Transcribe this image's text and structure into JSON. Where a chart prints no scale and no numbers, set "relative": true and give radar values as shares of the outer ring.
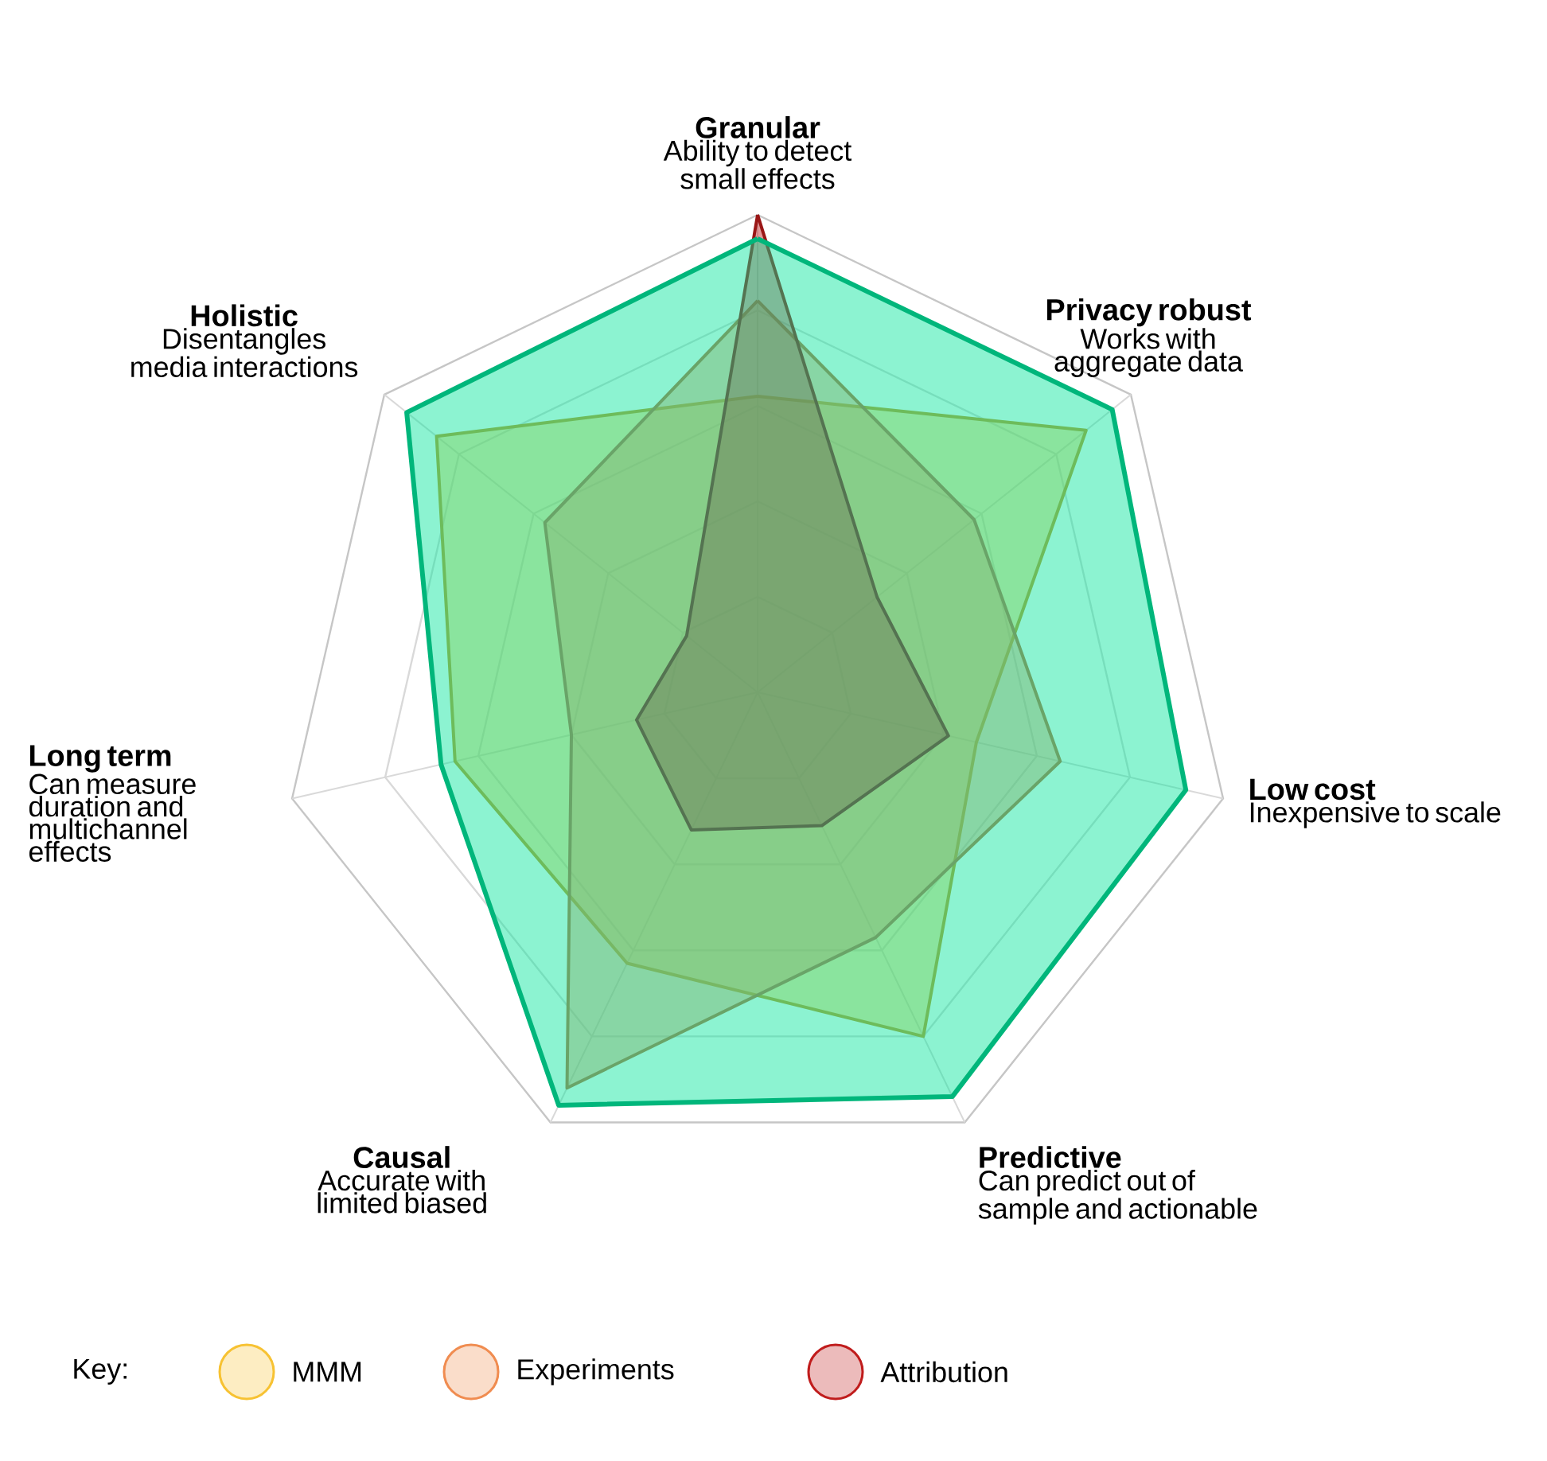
{
  "chart_data": {
    "type": "radar",
    "relative": true,
    "grid": true,
    "legend": "bottom",
    "legend_title": "Key:",
    "categories": [
      "Granular",
      "Privacy robust",
      "Low cost",
      "Predictive",
      "Causal",
      "Long term",
      "Holistic"
    ],
    "annotations": [
      "Ability to detect small effects",
      "Works with aggregate data",
      "Inexpensive to scale",
      "Can predict out of sample and actionable",
      "Accurate with limited biased",
      "Can measure duration and multichannel effects",
      "Disentangles media interactions"
    ],
    "series": [
      {
        "name": "MMM",
        "color": "#f7c232",
        "values": [
          0.62,
          0.88,
          0.47,
          0.8,
          0.63,
          0.65,
          0.86
        ]
      },
      {
        "name": "Experiments",
        "color": "#f08c50",
        "values": [
          0.82,
          0.58,
          0.65,
          0.57,
          0.92,
          0.4,
          0.57
        ]
      },
      {
        "name": "Attribution",
        "color": "#c01c1c",
        "values": [
          1.0,
          0.32,
          0.41,
          0.31,
          0.32,
          0.26,
          0.19
        ]
      },
      {
        "color": "#00e49a",
        "values": [
          0.95,
          0.95,
          0.92,
          0.94,
          0.96,
          0.68,
          0.94
        ]
      }
    ]
  }
}
